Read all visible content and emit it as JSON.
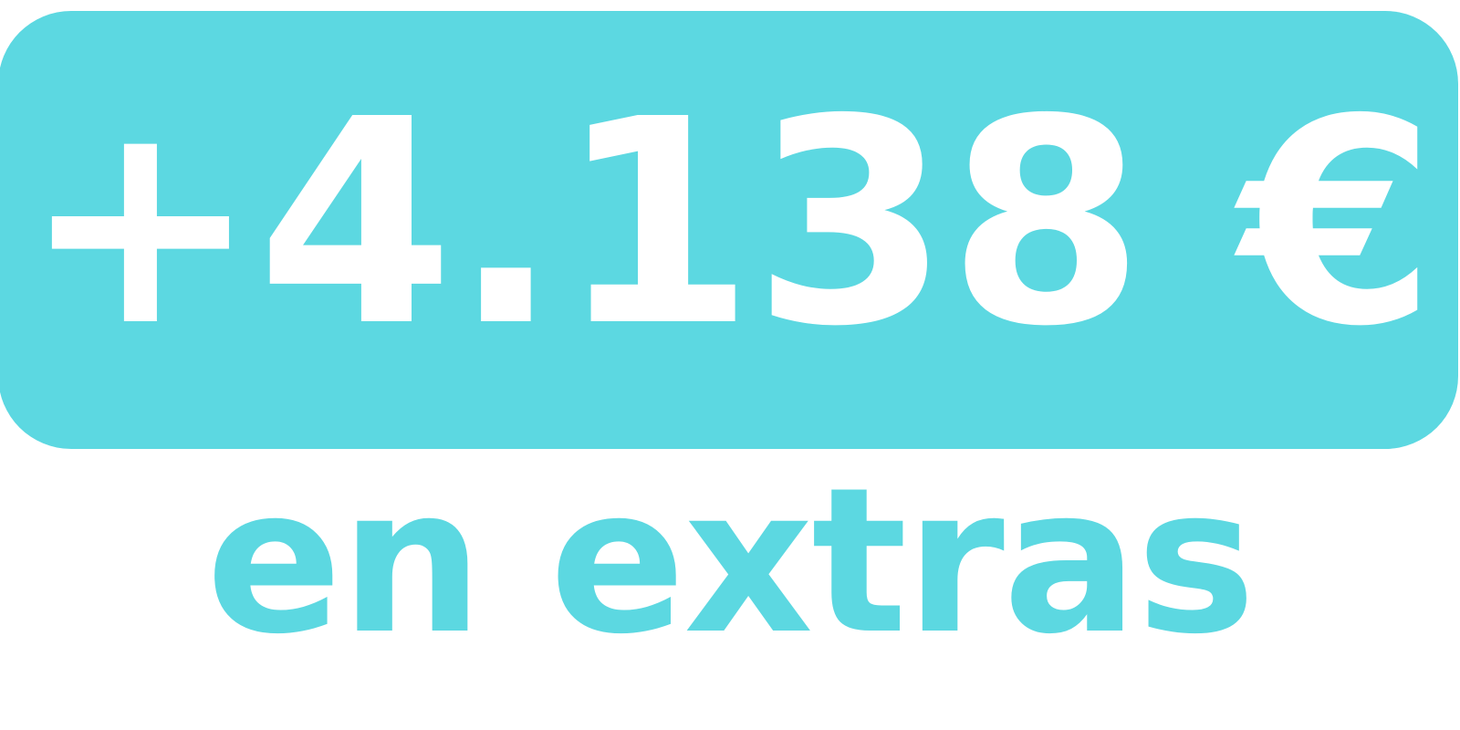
{
  "colors": {
    "accent": "#5cd8e1",
    "text_on_accent": "#ffffff"
  },
  "badge": {
    "value": "+4.138 €"
  },
  "caption": {
    "text": "en extras"
  }
}
